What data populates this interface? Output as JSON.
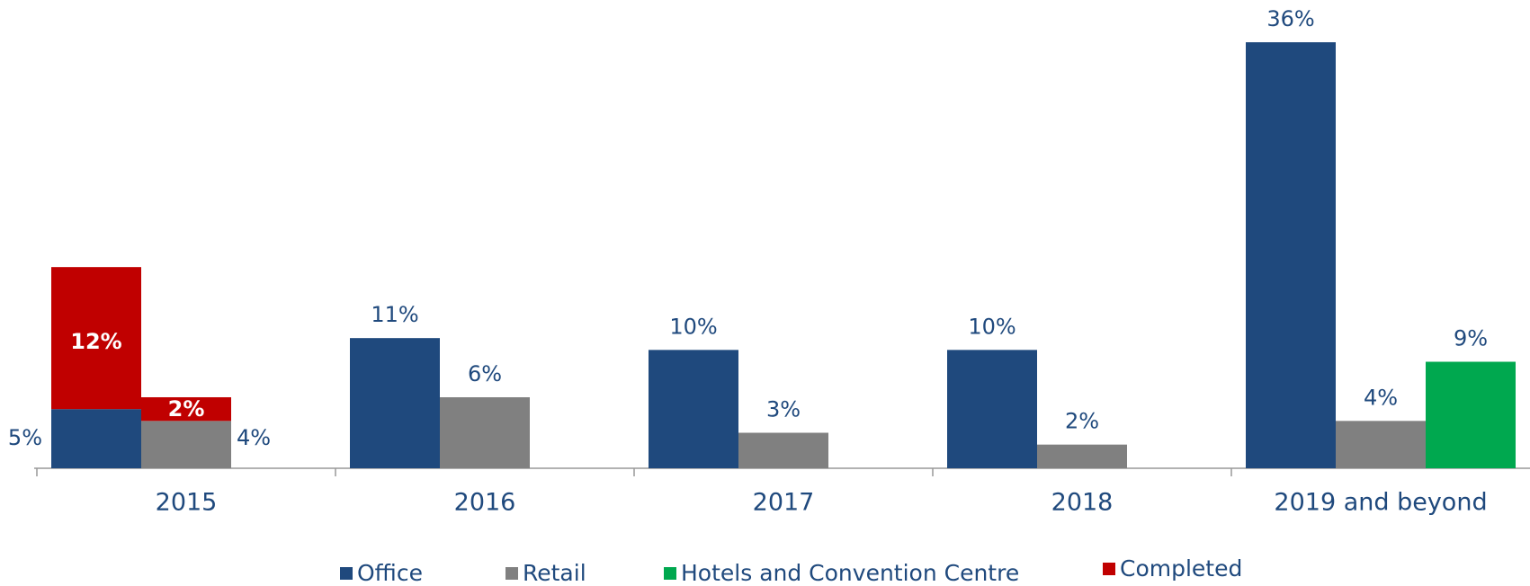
{
  "chart_data": {
    "type": "bar",
    "categories": [
      "2015",
      "2016",
      "2017",
      "2018",
      "2019 and beyond"
    ],
    "series": [
      {
        "name": "Office",
        "color": "#1f497d",
        "values": [
          5,
          11,
          10,
          10,
          36
        ],
        "value_labels": [
          "5%",
          "11%",
          "10%",
          "10%",
          "36%"
        ]
      },
      {
        "name": "Retail",
        "color": "#808080",
        "values": [
          4,
          6,
          3,
          2,
          4
        ],
        "value_labels": [
          "4%",
          "6%",
          "3%",
          "2%",
          "4%"
        ]
      },
      {
        "name": "Hotels and Convention Centre",
        "color": "#00a84f",
        "values": [
          null,
          null,
          null,
          null,
          9
        ],
        "value_labels": [
          null,
          null,
          null,
          null,
          "9%"
        ]
      },
      {
        "name": "Completed",
        "color": "#c00000",
        "stacked_on": [
          0,
          1
        ],
        "values": [
          [
            12,
            2
          ],
          null,
          null,
          null,
          null
        ],
        "value_labels": [
          [
            "12%",
            "2%"
          ],
          null,
          null,
          null,
          null
        ]
      }
    ]
  }
}
